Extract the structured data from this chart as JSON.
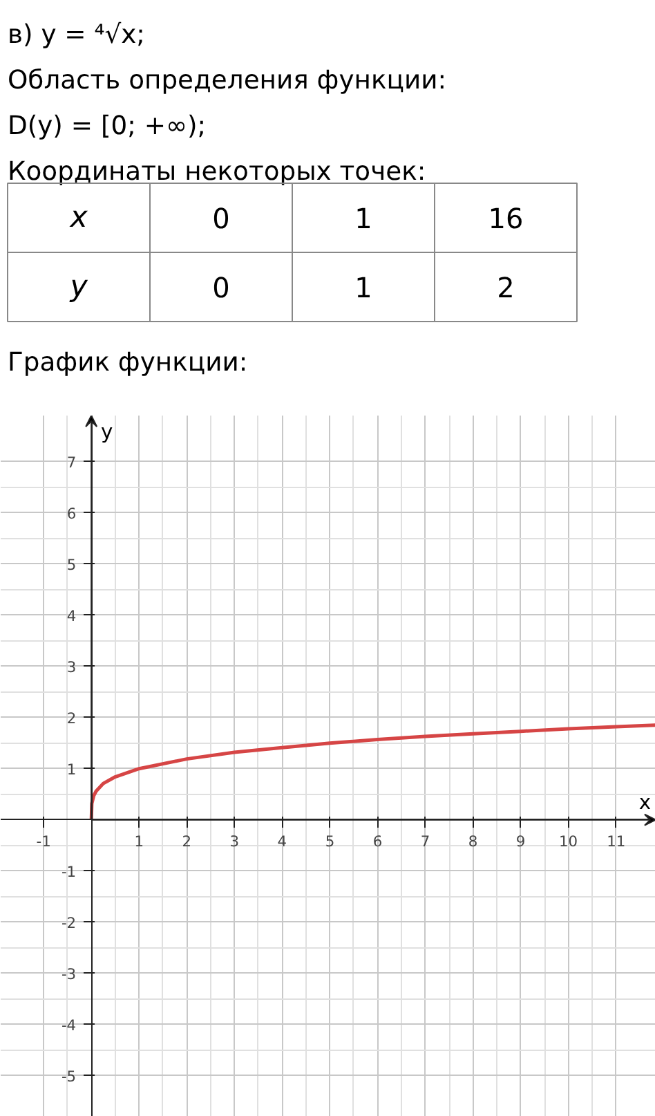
{
  "chart_data": {
    "type": "line",
    "title": "График функции:",
    "annotations": [
      "в) y = ⁴√x;",
      "Область определения функции:",
      "D(y) = [0; +∞);",
      "Координаты некоторых точек:",
      "x\t0\t1\t16",
      "y\t0\t1\t2"
    ],
    "xlabel": "x",
    "ylabel": "y",
    "x": [
      0,
      0.01,
      0.05,
      0.1,
      0.25,
      0.5,
      1,
      2,
      3,
      4,
      5,
      6,
      7,
      8,
      9,
      10,
      11,
      11.83
    ],
    "series": [
      {
        "color": "#d64545",
        "values": [
          0,
          0.32,
          0.47,
          0.56,
          0.71,
          0.84,
          1,
          1.19,
          1.32,
          1.41,
          1.5,
          1.57,
          1.63,
          1.68,
          1.73,
          1.78,
          1.82,
          1.85
        ]
      }
    ],
    "xlim": [
      -1.9,
      11.83
    ],
    "ylim": [
      -5.8,
      7.9
    ],
    "xticks": [
      -1,
      {
        "value": 0,
        "label": null
      },
      1,
      2,
      3,
      4,
      5,
      6,
      7,
      8,
      9,
      10,
      11
    ],
    "yticks": [
      -5,
      -4,
      -3,
      -2,
      -1,
      {
        "value": 0,
        "label": null
      },
      1,
      2,
      3,
      4,
      5,
      6,
      7
    ],
    "grid": true,
    "marker": "none",
    "line_style": "solid"
  }
}
